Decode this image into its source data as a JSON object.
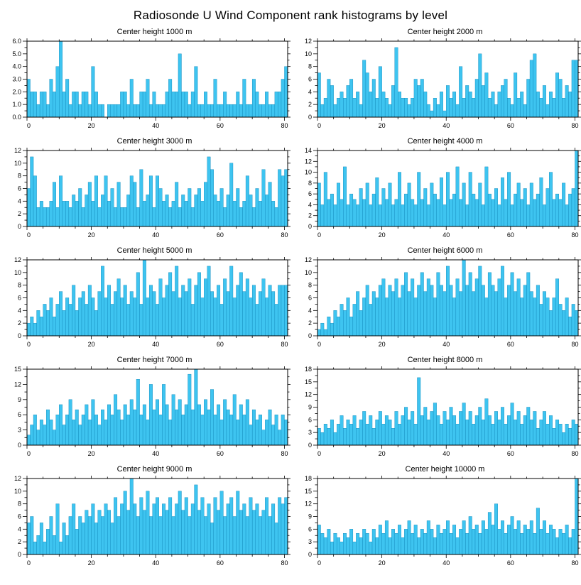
{
  "title": "Radiosonde U Wind Component rank histograms by level",
  "bar_color": "#3EC4F0",
  "bar_edge_color": "#0E86B8",
  "axis_color": "#000000",
  "chart_data": [
    {
      "type": "bar",
      "title": "Center height 1000 m",
      "xlabel": "",
      "ylabel": "",
      "ylim": [
        0,
        6
      ],
      "ytick": 1,
      "ydecimals": 1,
      "x_ticks": [
        0,
        20,
        40,
        60,
        80
      ],
      "legend": "none",
      "grid": false,
      "values": [
        3,
        2,
        2,
        1,
        2,
        2,
        1,
        3,
        2,
        4,
        6,
        2,
        3,
        1,
        2,
        2,
        1,
        2,
        2,
        1,
        4,
        2,
        1,
        1,
        0,
        1,
        1,
        1,
        1,
        2,
        2,
        1,
        3,
        1,
        1,
        2,
        2,
        3,
        1,
        2,
        1,
        1,
        1,
        2,
        3,
        2,
        2,
        5,
        2,
        2,
        1,
        2,
        4,
        1,
        1,
        2,
        1,
        1,
        3,
        1,
        1,
        2,
        1,
        1,
        1,
        2,
        1,
        3,
        1,
        1,
        3,
        2,
        1,
        1,
        2,
        1,
        1,
        2,
        2,
        3,
        4
      ]
    },
    {
      "type": "bar",
      "title": "Center height 2000 m",
      "xlabel": "",
      "ylabel": "",
      "ylim": [
        0,
        12
      ],
      "ytick": 2,
      "ydecimals": 0,
      "x_ticks": [
        0,
        20,
        40,
        60,
        80
      ],
      "legend": "none",
      "grid": false,
      "values": [
        7,
        2,
        3,
        6,
        5,
        2,
        3,
        4,
        3,
        5,
        6,
        3,
        4,
        2,
        9,
        7,
        4,
        6,
        3,
        8,
        4,
        3,
        2,
        5,
        11,
        4,
        3,
        3,
        2,
        3,
        6,
        5,
        6,
        4,
        2,
        1,
        3,
        2,
        4,
        1,
        5,
        3,
        4,
        2,
        8,
        3,
        5,
        4,
        3,
        6,
        10,
        5,
        7,
        3,
        4,
        2,
        4,
        5,
        6,
        3,
        2,
        7,
        3,
        4,
        2,
        6,
        9,
        10,
        4,
        3,
        5,
        2,
        4,
        3,
        7,
        6,
        3,
        5,
        4,
        9,
        9
      ]
    },
    {
      "type": "bar",
      "title": "Center height 3000 m",
      "xlabel": "",
      "ylabel": "",
      "ylim": [
        0,
        12
      ],
      "ytick": 2,
      "ydecimals": 0,
      "x_ticks": [
        0,
        20,
        40,
        60,
        80
      ],
      "legend": "none",
      "grid": false,
      "values": [
        6,
        11,
        8,
        3,
        4,
        3,
        3,
        4,
        7,
        3,
        8,
        4,
        4,
        3,
        5,
        4,
        6,
        3,
        5,
        7,
        4,
        8,
        3,
        5,
        8,
        4,
        6,
        3,
        7,
        3,
        3,
        5,
        8,
        7,
        3,
        9,
        4,
        5,
        8,
        3,
        8,
        6,
        4,
        5,
        3,
        4,
        7,
        3,
        5,
        4,
        6,
        3,
        5,
        6,
        4,
        7,
        11,
        9,
        5,
        4,
        6,
        3,
        5,
        10,
        4,
        6,
        3,
        4,
        8,
        5,
        3,
        6,
        4,
        9,
        5,
        7,
        4,
        3,
        9,
        8,
        9
      ]
    },
    {
      "type": "bar",
      "title": "Center height 4000 m",
      "xlabel": "",
      "ylabel": "",
      "ylim": [
        0,
        14
      ],
      "ytick": 2,
      "ydecimals": 0,
      "x_ticks": [
        0,
        20,
        40,
        60,
        80
      ],
      "legend": "none",
      "grid": false,
      "values": [
        8,
        4,
        10,
        5,
        6,
        4,
        8,
        5,
        11,
        4,
        6,
        5,
        4,
        7,
        5,
        8,
        4,
        6,
        9,
        4,
        7,
        5,
        8,
        4,
        5,
        10,
        4,
        6,
        8,
        5,
        4,
        10,
        5,
        7,
        4,
        8,
        6,
        5,
        9,
        4,
        10,
        5,
        6,
        11,
        5,
        8,
        4,
        10,
        6,
        5,
        8,
        4,
        11,
        6,
        5,
        7,
        4,
        9,
        5,
        10,
        4,
        6,
        8,
        5,
        7,
        4,
        8,
        5,
        6,
        9,
        4,
        7,
        10,
        5,
        6,
        5,
        8,
        4,
        6,
        7,
        14
      ]
    },
    {
      "type": "bar",
      "title": "Center height 5000 m",
      "xlabel": "",
      "ylabel": "",
      "ylim": [
        0,
        12
      ],
      "ytick": 2,
      "ydecimals": 0,
      "x_ticks": [
        0,
        20,
        40,
        60,
        80
      ],
      "legend": "none",
      "grid": false,
      "values": [
        2,
        3,
        2,
        4,
        3,
        5,
        4,
        6,
        3,
        5,
        7,
        4,
        6,
        5,
        8,
        4,
        6,
        7,
        5,
        8,
        6,
        4,
        7,
        11,
        6,
        8,
        5,
        7,
        9,
        6,
        8,
        5,
        7,
        6,
        10,
        5,
        12,
        6,
        8,
        7,
        5,
        9,
        6,
        8,
        10,
        7,
        11,
        6,
        8,
        7,
        9,
        5,
        8,
        10,
        6,
        9,
        11,
        7,
        6,
        8,
        5,
        9,
        7,
        11,
        6,
        8,
        10,
        7,
        9,
        6,
        8,
        5,
        7,
        9,
        6,
        8,
        7,
        5,
        8,
        8,
        8
      ]
    },
    {
      "type": "bar",
      "title": "Center height 6000 m",
      "xlabel": "",
      "ylabel": "",
      "ylim": [
        0,
        12
      ],
      "ytick": 2,
      "ydecimals": 0,
      "x_ticks": [
        0,
        20,
        40,
        60,
        80
      ],
      "legend": "none",
      "grid": false,
      "values": [
        1,
        2,
        1,
        3,
        2,
        4,
        3,
        5,
        4,
        6,
        3,
        5,
        7,
        4,
        6,
        8,
        5,
        7,
        6,
        8,
        9,
        6,
        8,
        7,
        9,
        6,
        8,
        10,
        7,
        9,
        6,
        8,
        10,
        7,
        9,
        8,
        6,
        10,
        8,
        7,
        11,
        8,
        6,
        9,
        7,
        12,
        8,
        10,
        7,
        9,
        11,
        8,
        6,
        10,
        8,
        7,
        9,
        11,
        6,
        8,
        10,
        7,
        9,
        6,
        8,
        10,
        7,
        6,
        8,
        5,
        7,
        6,
        4,
        6,
        9,
        5,
        4,
        6,
        3,
        5,
        4
      ]
    },
    {
      "type": "bar",
      "title": "Center height 7000 m",
      "xlabel": "",
      "ylabel": "",
      "ylim": [
        0,
        15
      ],
      "ytick": 3,
      "ydecimals": 0,
      "x_ticks": [
        0,
        20,
        40,
        60,
        80
      ],
      "legend": "none",
      "grid": false,
      "values": [
        2,
        4,
        6,
        3,
        5,
        4,
        7,
        5,
        3,
        6,
        8,
        4,
        6,
        9,
        5,
        7,
        4,
        6,
        8,
        5,
        9,
        6,
        4,
        7,
        5,
        8,
        6,
        10,
        7,
        5,
        8,
        6,
        9,
        7,
        13,
        6,
        8,
        5,
        12,
        7,
        9,
        6,
        12,
        8,
        5,
        10,
        7,
        9,
        6,
        8,
        14,
        7,
        15,
        8,
        6,
        9,
        7,
        11,
        6,
        8,
        5,
        9,
        7,
        6,
        10,
        5,
        8,
        6,
        9,
        4,
        7,
        5,
        6,
        3,
        5,
        7,
        4,
        6,
        3,
        6,
        5
      ]
    },
    {
      "type": "bar",
      "title": "Center height 8000 m",
      "xlabel": "",
      "ylabel": "",
      "ylim": [
        0,
        18
      ],
      "ytick": 3,
      "ydecimals": 0,
      "x_ticks": [
        0,
        20,
        40,
        60,
        80
      ],
      "legend": "none",
      "grid": false,
      "values": [
        4,
        3,
        5,
        4,
        6,
        3,
        5,
        7,
        4,
        6,
        5,
        7,
        4,
        6,
        8,
        5,
        7,
        4,
        6,
        8,
        5,
        7,
        6,
        4,
        8,
        5,
        7,
        9,
        6,
        8,
        5,
        16,
        7,
        9,
        6,
        8,
        10,
        7,
        5,
        8,
        6,
        9,
        7,
        5,
        8,
        10,
        6,
        8,
        5,
        7,
        9,
        6,
        11,
        7,
        5,
        8,
        6,
        9,
        5,
        7,
        10,
        6,
        8,
        5,
        7,
        9,
        6,
        8,
        4,
        6,
        8,
        5,
        7,
        4,
        6,
        5,
        3,
        5,
        4,
        6,
        5
      ]
    },
    {
      "type": "bar",
      "title": "Center height 9000 m",
      "xlabel": "",
      "ylabel": "",
      "ylim": [
        0,
        12
      ],
      "ytick": 2,
      "ydecimals": 0,
      "x_ticks": [
        0,
        20,
        40,
        60,
        80
      ],
      "legend": "none",
      "grid": false,
      "values": [
        5,
        6,
        2,
        3,
        5,
        2,
        4,
        6,
        3,
        8,
        2,
        5,
        3,
        6,
        8,
        4,
        6,
        5,
        7,
        6,
        8,
        5,
        7,
        6,
        8,
        7,
        5,
        9,
        6,
        8,
        10,
        7,
        12,
        8,
        6,
        9,
        7,
        10,
        6,
        8,
        9,
        6,
        8,
        7,
        9,
        6,
        8,
        10,
        7,
        9,
        6,
        8,
        11,
        7,
        9,
        6,
        8,
        5,
        9,
        7,
        10,
        6,
        8,
        9,
        6,
        10,
        7,
        8,
        6,
        9,
        7,
        8,
        6,
        7,
        9,
        6,
        8,
        5,
        9,
        8,
        9
      ]
    },
    {
      "type": "bar",
      "title": "Center height 10000 m",
      "xlabel": "",
      "ylabel": "",
      "ylim": [
        0,
        18
      ],
      "ytick": 3,
      "ydecimals": 0,
      "x_ticks": [
        0,
        20,
        40,
        60,
        80
      ],
      "legend": "none",
      "grid": false,
      "values": [
        7,
        5,
        4,
        6,
        3,
        5,
        4,
        3,
        5,
        4,
        6,
        3,
        5,
        4,
        6,
        5,
        3,
        6,
        4,
        7,
        5,
        8,
        4,
        6,
        5,
        7,
        4,
        6,
        8,
        5,
        7,
        4,
        6,
        5,
        8,
        6,
        4,
        7,
        5,
        6,
        8,
        5,
        7,
        4,
        6,
        8,
        5,
        9,
        6,
        7,
        5,
        8,
        6,
        10,
        7,
        12,
        6,
        8,
        5,
        7,
        9,
        6,
        8,
        5,
        7,
        6,
        8,
        5,
        11,
        6,
        8,
        5,
        7,
        6,
        4,
        6,
        5,
        7,
        4,
        6,
        18
      ]
    }
  ]
}
